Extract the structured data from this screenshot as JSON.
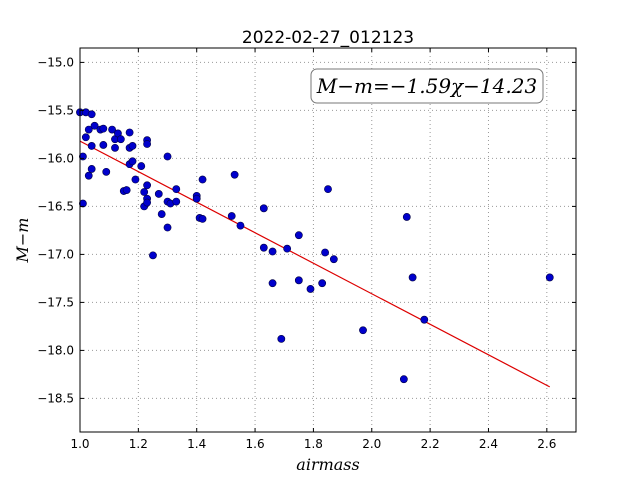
{
  "chart_data": {
    "type": "scatter",
    "title": "2022-02-27_012123",
    "xlabel": "airmass",
    "ylabel": "M−m",
    "annotation": "M−m=−1.59χ−14.23",
    "xlim": [
      1.0,
      2.7
    ],
    "ylim": [
      -18.85,
      -14.85
    ],
    "y_inverted": true,
    "grid": true,
    "xticks": [
      1.0,
      1.2,
      1.4,
      1.6,
      1.8,
      2.0,
      2.2,
      2.4,
      2.6
    ],
    "xtick_labels": [
      "1.0",
      "1.2",
      "1.4",
      "1.6",
      "1.8",
      "2.0",
      "2.2",
      "2.4",
      "2.6"
    ],
    "yticks": [
      -15.0,
      -15.5,
      -16.0,
      -16.5,
      -17.0,
      -17.5,
      -18.0,
      -18.5
    ],
    "ytick_labels": [
      "−15.0",
      "−15.5",
      "−16.0",
      "−16.5",
      "−17.0",
      "−17.5",
      "−18.0",
      "−18.5"
    ],
    "points_color": "#0000cc",
    "fit_color": "#dd0000",
    "fit": {
      "slope": -1.59,
      "intercept": -14.23,
      "x_range": [
        1.0,
        2.61
      ]
    },
    "points": [
      {
        "x": 1.0,
        "y": -15.52
      },
      {
        "x": 1.01,
        "y": -15.98
      },
      {
        "x": 1.02,
        "y": -15.52
      },
      {
        "x": 1.02,
        "y": -15.78
      },
      {
        "x": 1.01,
        "y": -16.47
      },
      {
        "x": 1.03,
        "y": -15.7
      },
      {
        "x": 1.03,
        "y": -16.18
      },
      {
        "x": 1.04,
        "y": -15.54
      },
      {
        "x": 1.04,
        "y": -15.87
      },
      {
        "x": 1.04,
        "y": -16.11
      },
      {
        "x": 1.05,
        "y": -15.66
      },
      {
        "x": 1.07,
        "y": -15.7
      },
      {
        "x": 1.08,
        "y": -15.69
      },
      {
        "x": 1.08,
        "y": -15.86
      },
      {
        "x": 1.09,
        "y": -16.14
      },
      {
        "x": 1.11,
        "y": -15.7
      },
      {
        "x": 1.12,
        "y": -15.8
      },
      {
        "x": 1.12,
        "y": -15.89
      },
      {
        "x": 1.13,
        "y": -15.74
      },
      {
        "x": 1.14,
        "y": -15.8
      },
      {
        "x": 1.15,
        "y": -16.34
      },
      {
        "x": 1.16,
        "y": -16.33
      },
      {
        "x": 1.17,
        "y": -15.73
      },
      {
        "x": 1.17,
        "y": -15.89
      },
      {
        "x": 1.17,
        "y": -16.06
      },
      {
        "x": 1.18,
        "y": -15.87
      },
      {
        "x": 1.18,
        "y": -16.03
      },
      {
        "x": 1.19,
        "y": -16.22
      },
      {
        "x": 1.21,
        "y": -16.08
      },
      {
        "x": 1.22,
        "y": -16.35
      },
      {
        "x": 1.22,
        "y": -16.5
      },
      {
        "x": 1.23,
        "y": -16.28
      },
      {
        "x": 1.23,
        "y": -15.81
      },
      {
        "x": 1.23,
        "y": -15.85
      },
      {
        "x": 1.23,
        "y": -16.42
      },
      {
        "x": 1.23,
        "y": -16.46
      },
      {
        "x": 1.25,
        "y": -17.01
      },
      {
        "x": 1.27,
        "y": -16.37
      },
      {
        "x": 1.28,
        "y": -16.58
      },
      {
        "x": 1.3,
        "y": -16.45
      },
      {
        "x": 1.3,
        "y": -15.98
      },
      {
        "x": 1.3,
        "y": -16.72
      },
      {
        "x": 1.31,
        "y": -16.47
      },
      {
        "x": 1.33,
        "y": -16.32
      },
      {
        "x": 1.33,
        "y": -16.45
      },
      {
        "x": 1.4,
        "y": -16.39
      },
      {
        "x": 1.4,
        "y": -16.42
      },
      {
        "x": 1.41,
        "y": -16.62
      },
      {
        "x": 1.42,
        "y": -16.63
      },
      {
        "x": 1.42,
        "y": -16.22
      },
      {
        "x": 1.52,
        "y": -16.6
      },
      {
        "x": 1.53,
        "y": -16.17
      },
      {
        "x": 1.55,
        "y": -16.7
      },
      {
        "x": 1.63,
        "y": -16.52
      },
      {
        "x": 1.63,
        "y": -16.93
      },
      {
        "x": 1.66,
        "y": -16.97
      },
      {
        "x": 1.66,
        "y": -17.3
      },
      {
        "x": 1.69,
        "y": -17.88
      },
      {
        "x": 1.71,
        "y": -16.94
      },
      {
        "x": 1.75,
        "y": -16.8
      },
      {
        "x": 1.75,
        "y": -17.27
      },
      {
        "x": 1.79,
        "y": -17.36
      },
      {
        "x": 1.83,
        "y": -17.3
      },
      {
        "x": 1.84,
        "y": -16.98
      },
      {
        "x": 1.85,
        "y": -16.32
      },
      {
        "x": 1.87,
        "y": -17.05
      },
      {
        "x": 1.97,
        "y": -17.79
      },
      {
        "x": 2.11,
        "y": -18.3
      },
      {
        "x": 2.12,
        "y": -16.61
      },
      {
        "x": 2.14,
        "y": -17.24
      },
      {
        "x": 2.18,
        "y": -17.68
      },
      {
        "x": 2.61,
        "y": -17.24
      }
    ]
  }
}
